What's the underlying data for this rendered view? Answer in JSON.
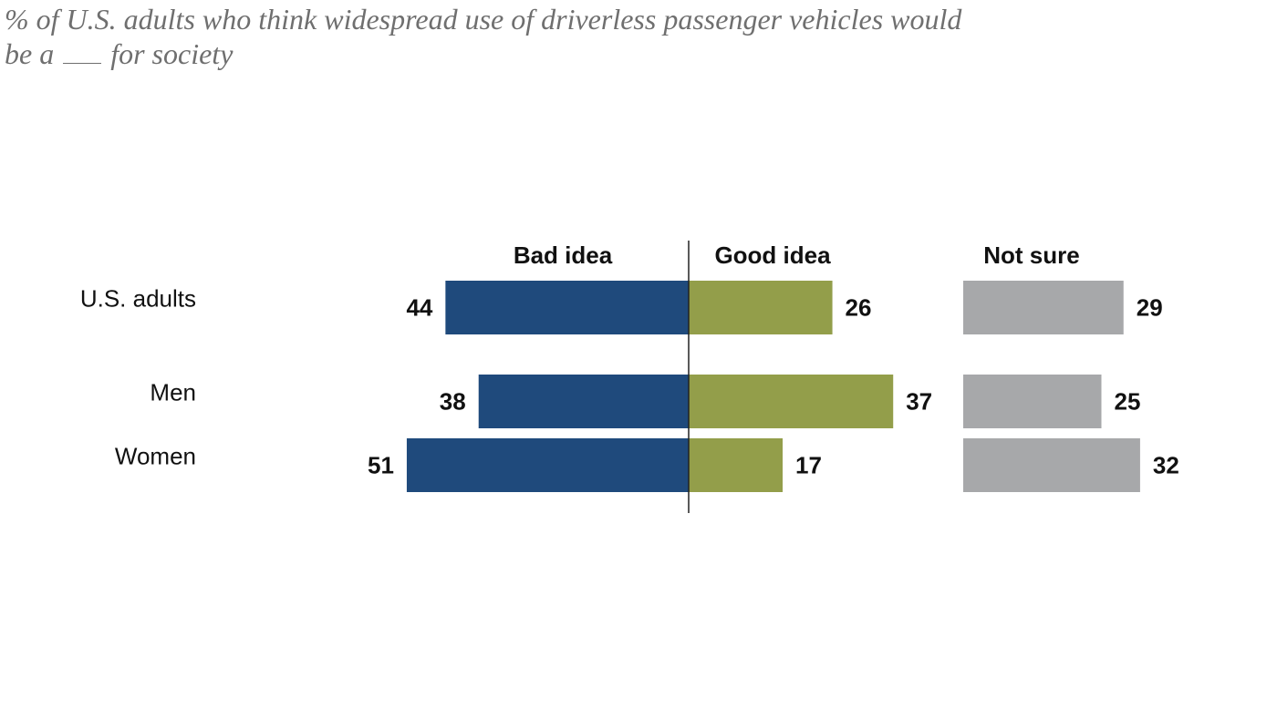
{
  "title": {
    "line1": "% of U.S. adults who think widespread use of driverless passenger vehicles would",
    "line2_pre": "be a",
    "line2_post": "for society"
  },
  "chart_data": {
    "type": "bar",
    "subtype": "diverging-bar",
    "categories": [
      "U.S. adults",
      "Men",
      "Women"
    ],
    "series": [
      {
        "name": "Bad idea",
        "values": [
          44,
          38,
          51
        ],
        "color": "#1f4a7c"
      },
      {
        "name": "Good idea",
        "values": [
          26,
          37,
          17
        ],
        "color": "#939e4a"
      },
      {
        "name": "Not sure",
        "values": [
          29,
          25,
          32
        ],
        "color": "#a7a8aa"
      }
    ],
    "xlabel": "",
    "ylabel": ""
  }
}
